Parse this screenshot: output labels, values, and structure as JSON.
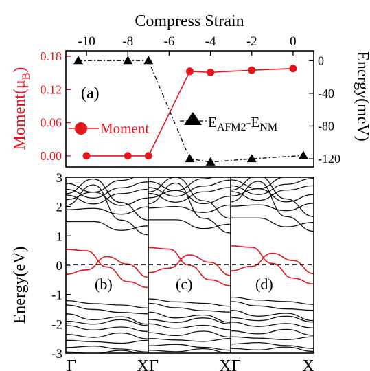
{
  "chart_data": [
    {
      "type": "line",
      "panel_label": "(a)",
      "top_xlabel": "Compress Strain",
      "xlim": [
        -11,
        1
      ],
      "x_ticks": [
        -10,
        -8,
        -6,
        -4,
        -2,
        0
      ],
      "left_axis": {
        "label_main": "Moment(μ",
        "label_sub": "B",
        "label_end": ")",
        "ylim": [
          -0.02,
          0.19
        ],
        "ticks": [
          "0.00",
          "0.06",
          "0.12",
          "0.18"
        ],
        "color": "#e8141c"
      },
      "right_axis": {
        "label": "Energy(meV)",
        "ylim": [
          -130,
          12
        ],
        "ticks": [
          "0",
          "-40",
          "-80",
          "-120"
        ]
      },
      "series": [
        {
          "name": "Moment",
          "axis": "left",
          "color": "#e8141c",
          "marker": "circle",
          "x": [
            -10,
            -8,
            -7,
            -5,
            -4,
            -2,
            0
          ],
          "y": [
            0.0,
            0.0,
            0.0,
            0.153,
            0.151,
            0.155,
            0.158
          ]
        },
        {
          "name_parts": [
            "E",
            "AFM2",
            "-E",
            "NM"
          ],
          "axis": "right",
          "color": "#000000",
          "marker": "triangle",
          "x": [
            -10.4,
            -8,
            -7,
            -5,
            -4,
            -2,
            0.5
          ],
          "y": [
            0,
            0,
            0,
            -120,
            -124,
            -120,
            -116
          ]
        }
      ]
    },
    {
      "type": "band_structure",
      "ylabel": "Energy(eV)",
      "ylim": [
        -3,
        3
      ],
      "y_ticks": [
        "-3",
        "-2",
        "-1",
        "0",
        "1",
        "2",
        "3"
      ],
      "fermi_level": 0,
      "panels": [
        {
          "label": "(b)",
          "k_labels": [
            "Γ",
            "X"
          ]
        },
        {
          "label": "(c)",
          "k_labels": [
            "Γ",
            "X"
          ]
        },
        {
          "label": "(d)",
          "k_labels": [
            "Γ",
            "X"
          ]
        }
      ]
    }
  ]
}
